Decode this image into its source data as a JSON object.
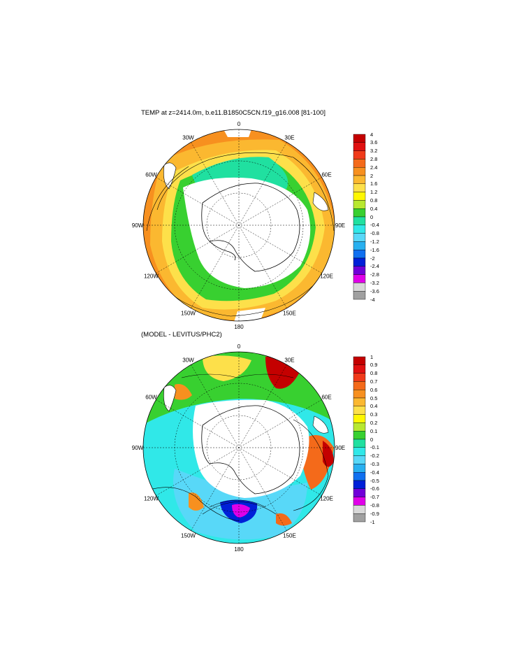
{
  "maps": [
    {
      "title": "TEMP at z=2414.0m, b.e11.B1850C5CN.f19_g16.008 [81-100]",
      "lon_labels": [
        "0",
        "30E",
        "60E",
        "90E",
        "120E",
        "150E",
        "180",
        "150W",
        "120W",
        "90W",
        "60W",
        "30W"
      ],
      "colorbar": {
        "labels": [
          "4",
          "3.6",
          "3.2",
          "2.8",
          "2.4",
          "2",
          "1.6",
          "1.2",
          "0.8",
          "0.4",
          "0",
          "-0.4",
          "-0.8",
          "-1.2",
          "-1.6",
          "-2",
          "-2.4",
          "-2.8",
          "-3.2",
          "-3.6",
          "-4"
        ]
      }
    },
    {
      "title": "(MODEL - LEVITUS/PHC2)",
      "lon_labels": [
        "0",
        "30E",
        "60E",
        "90E",
        "120E",
        "150E",
        "180",
        "150W",
        "120W",
        "90W",
        "60W",
        "30W"
      ],
      "colorbar": {
        "labels": [
          "1",
          "0.9",
          "0.8",
          "0.7",
          "0.6",
          "0.5",
          "0.4",
          "0.3",
          "0.2",
          "0.1",
          "0",
          "-0.1",
          "-0.2",
          "-0.3",
          "-0.4",
          "-0.5",
          "-0.6",
          "-0.7",
          "-0.8",
          "-0.9",
          "-1"
        ]
      }
    }
  ],
  "palette": [
    "#c40000",
    "#e01010",
    "#f03a1a",
    "#f46a1a",
    "#f7901f",
    "#fbb830",
    "#fde04a",
    "#fff700",
    "#b8e830",
    "#38d030",
    "#20e0a0",
    "#30e8e8",
    "#58d8f8",
    "#28b0f0",
    "#1070f0",
    "#0020d8",
    "#7000d8",
    "#e000e8",
    "#d8d8d8",
    "#a0a0a0",
    "#707070"
  ],
  "sea_colors": {
    "land": "#ffffff",
    "ocean_outline": "#000000"
  }
}
